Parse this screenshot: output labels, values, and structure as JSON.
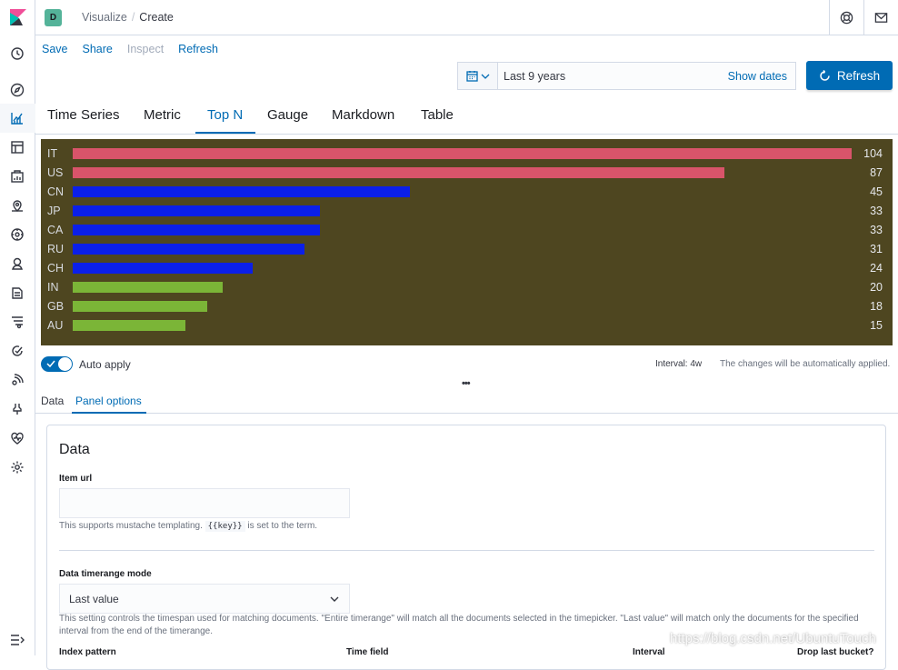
{
  "header": {
    "avatar_letter": "D",
    "breadcrumbs": [
      "Visualize",
      "Create"
    ]
  },
  "topmenu": {
    "save": "Save",
    "share": "Share",
    "inspect": "Inspect",
    "refresh": "Refresh"
  },
  "datepicker": {
    "label": "Last 9 years",
    "show_dates": "Show dates",
    "refresh_button": "Refresh"
  },
  "viz_tabs": [
    {
      "label": "Time Series",
      "active": false
    },
    {
      "label": "Metric",
      "active": false
    },
    {
      "label": "Top N",
      "active": true
    },
    {
      "label": "Gauge",
      "active": false
    },
    {
      "label": "Markdown",
      "active": false
    },
    {
      "label": "Table",
      "active": false
    }
  ],
  "chart_data": {
    "type": "bar",
    "orientation": "horizontal",
    "background": "#4e4620",
    "max": 104,
    "rows": [
      {
        "label": "IT",
        "value": 104,
        "color": "#d9546a"
      },
      {
        "label": "US",
        "value": 87,
        "color": "#d9546a"
      },
      {
        "label": "CN",
        "value": 45,
        "color": "#0b1fe8"
      },
      {
        "label": "JP",
        "value": 33,
        "color": "#0b1fe8"
      },
      {
        "label": "CA",
        "value": 33,
        "color": "#0b1fe8"
      },
      {
        "label": "RU",
        "value": 31,
        "color": "#0b1fe8"
      },
      {
        "label": "CH",
        "value": 24,
        "color": "#0b1fe8"
      },
      {
        "label": "IN",
        "value": 20,
        "color": "#7bb537"
      },
      {
        "label": "GB",
        "value": 18,
        "color": "#7bb537"
      },
      {
        "label": "AU",
        "value": 15,
        "color": "#7bb537"
      }
    ]
  },
  "controls": {
    "auto_apply": "Auto apply",
    "interval": "Interval: 4w",
    "auto_msg": "The changes will be automatically applied.",
    "resizer": "•••"
  },
  "subtabs": {
    "data": "Data",
    "panel_options": "Panel options"
  },
  "panel": {
    "title": "Data",
    "item_url_label": "Item url",
    "item_url_help_pre": "This supports mustache templating.",
    "item_url_help_code": "{{key}}",
    "item_url_help_post": "is set to the term.",
    "timerange_label": "Data timerange mode",
    "timerange_value": "Last value",
    "timerange_help": "This setting controls the timespan used for matching documents. \"Entire timerange\" will match all the documents selected in the timepicker. \"Last value\" will match only the documents for the specified interval from the end of the timerange.",
    "columns": [
      "Index pattern",
      "Time field",
      "Interval",
      "Drop last bucket?"
    ]
  },
  "watermark": "https://blog.csdn.net/UbuntuTouch"
}
